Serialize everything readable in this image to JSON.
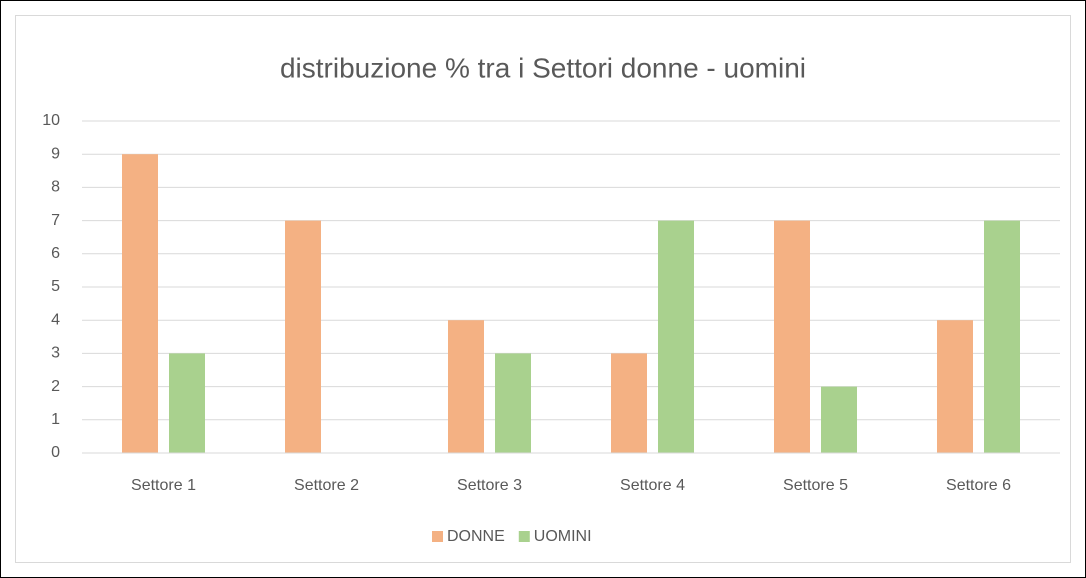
{
  "chart_data": {
    "type": "bar",
    "title": "distribuzione % tra i Settori donne - uomini",
    "categories": [
      "Settore 1",
      "Settore 2",
      "Settore 3",
      "Settore 4",
      "Settore 5",
      "Settore 6"
    ],
    "series": [
      {
        "name": "DONNE",
        "color": "#f4b183",
        "values": [
          9,
          7,
          4,
          3,
          7,
          4
        ]
      },
      {
        "name": "UOMINI",
        "color": "#a9d18e",
        "values": [
          3,
          0,
          3,
          7,
          2,
          7
        ]
      }
    ],
    "ylim": [
      0,
      10
    ],
    "yticks": [
      0,
      1,
      2,
      3,
      4,
      5,
      6,
      7,
      8,
      9,
      10
    ],
    "grid": true,
    "legend": "bottom"
  }
}
